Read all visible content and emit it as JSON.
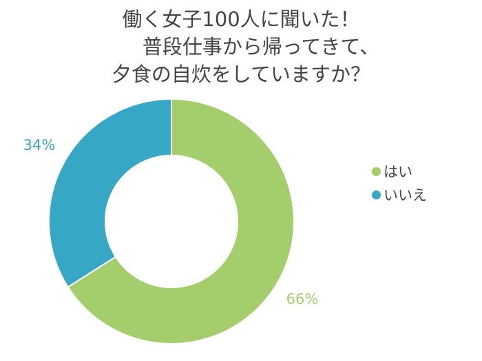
{
  "chart_data": {
    "type": "pie",
    "title_lines": [
      "働く女子100人に聞いた！",
      "普段仕事から帰ってきて、",
      "夕食の自炊をしていますか？"
    ],
    "slices": [
      {
        "label": "はい",
        "value": 66,
        "value_label": "66%",
        "color": "#a4cd6b"
      },
      {
        "label": "いいえ",
        "value": 34,
        "value_label": "34%",
        "color": "#36a8c6"
      }
    ],
    "donut": true,
    "legend_position": "right"
  }
}
